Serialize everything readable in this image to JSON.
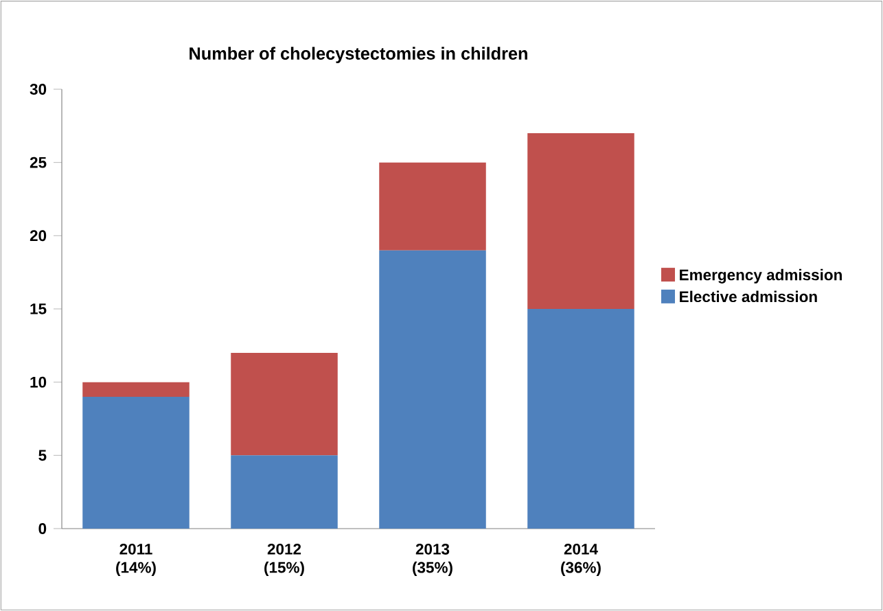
{
  "chart_data": {
    "type": "bar",
    "stacked": true,
    "title": "Number of cholecystectomies in children",
    "categories": [
      "2011 (14%)",
      "2012 (15%)",
      "2013 (35%)",
      "2014 (36%)"
    ],
    "series": [
      {
        "name": "Elective admission",
        "color": "#4f81bd",
        "values": [
          9,
          5,
          19,
          15
        ]
      },
      {
        "name": "Emergency admission",
        "color": "#c0504d",
        "values": [
          1,
          7,
          6,
          12
        ]
      }
    ],
    "ylim": [
      0,
      30
    ],
    "yticks": [
      0,
      5,
      10,
      15,
      20,
      25,
      30
    ],
    "legend": "right",
    "grid": false
  }
}
